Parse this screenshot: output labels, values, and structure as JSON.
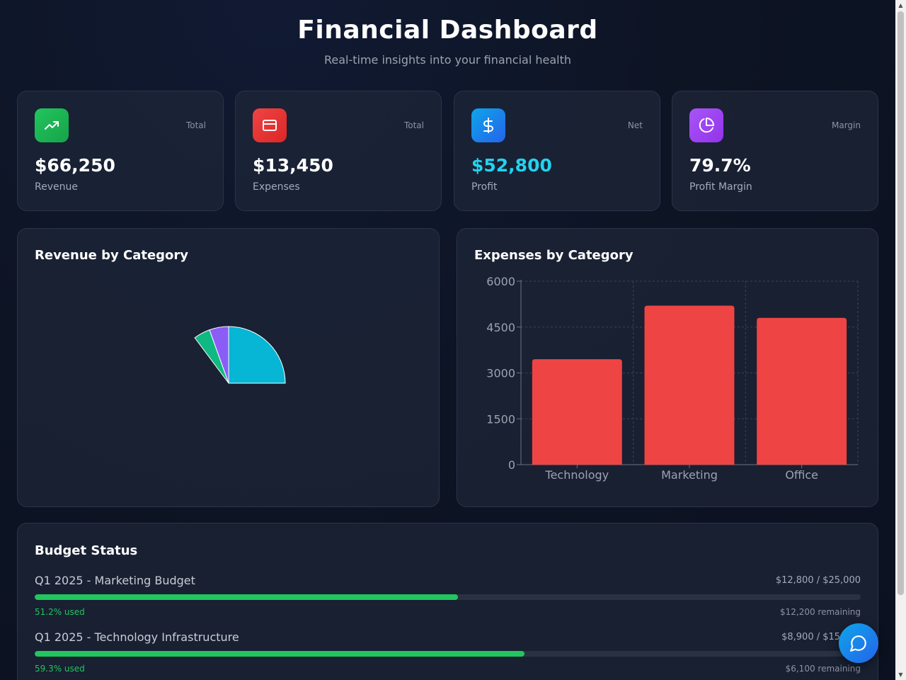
{
  "header": {
    "title": "Financial Dashboard",
    "subtitle": "Real-time insights into your financial health"
  },
  "stats": [
    {
      "tag": "Total",
      "value": "$66,250",
      "label": "Revenue",
      "icon": "trending-up-icon",
      "color": "#22c55e"
    },
    {
      "tag": "Total",
      "value": "$13,450",
      "label": "Expenses",
      "icon": "credit-card-icon",
      "color": "#ef4444"
    },
    {
      "tag": "Net",
      "value": "$52,800",
      "label": "Profit",
      "icon": "dollar-sign-icon",
      "color": "#0ea5e9",
      "value_color": "#22d3ee"
    },
    {
      "tag": "Margin",
      "value": "79.7%",
      "label": "Profit Margin",
      "icon": "pie-chart-icon",
      "color": "#a855f7"
    }
  ],
  "revenue_panel": {
    "title": "Revenue by Category"
  },
  "expenses_panel": {
    "title": "Expenses by Category"
  },
  "chart_data": [
    {
      "type": "pie",
      "title": "Revenue by Category",
      "slices": [
        {
          "value": 0.25,
          "color": "#06b6d4"
        },
        {
          "value": 0.055,
          "color": "#8b5cf6"
        },
        {
          "value": 0.047,
          "color": "#10b981"
        }
      ]
    },
    {
      "type": "bar",
      "title": "Expenses by Category",
      "categories": [
        "Technology",
        "Marketing",
        "Office"
      ],
      "values": [
        3450,
        5200,
        4800
      ],
      "ylim": [
        0,
        6000
      ],
      "yticks": [
        "0",
        "1500",
        "3000",
        "4500",
        "6000"
      ],
      "grid": true,
      "bar_color": "#ef4444"
    }
  ],
  "budget": {
    "title": "Budget Status",
    "items": [
      {
        "name": "Q1 2025 - Marketing Budget",
        "amount": "$12,800 / $25,000",
        "used": "51.2% used",
        "used_fraction": 0.512,
        "remaining": "$12,200 remaining"
      },
      {
        "name": "Q1 2025 - Technology Infrastructure",
        "amount": "$8,900 / $15,000",
        "used": "59.3% used",
        "used_fraction": 0.593,
        "remaining": "$6,100 remaining"
      }
    ]
  }
}
